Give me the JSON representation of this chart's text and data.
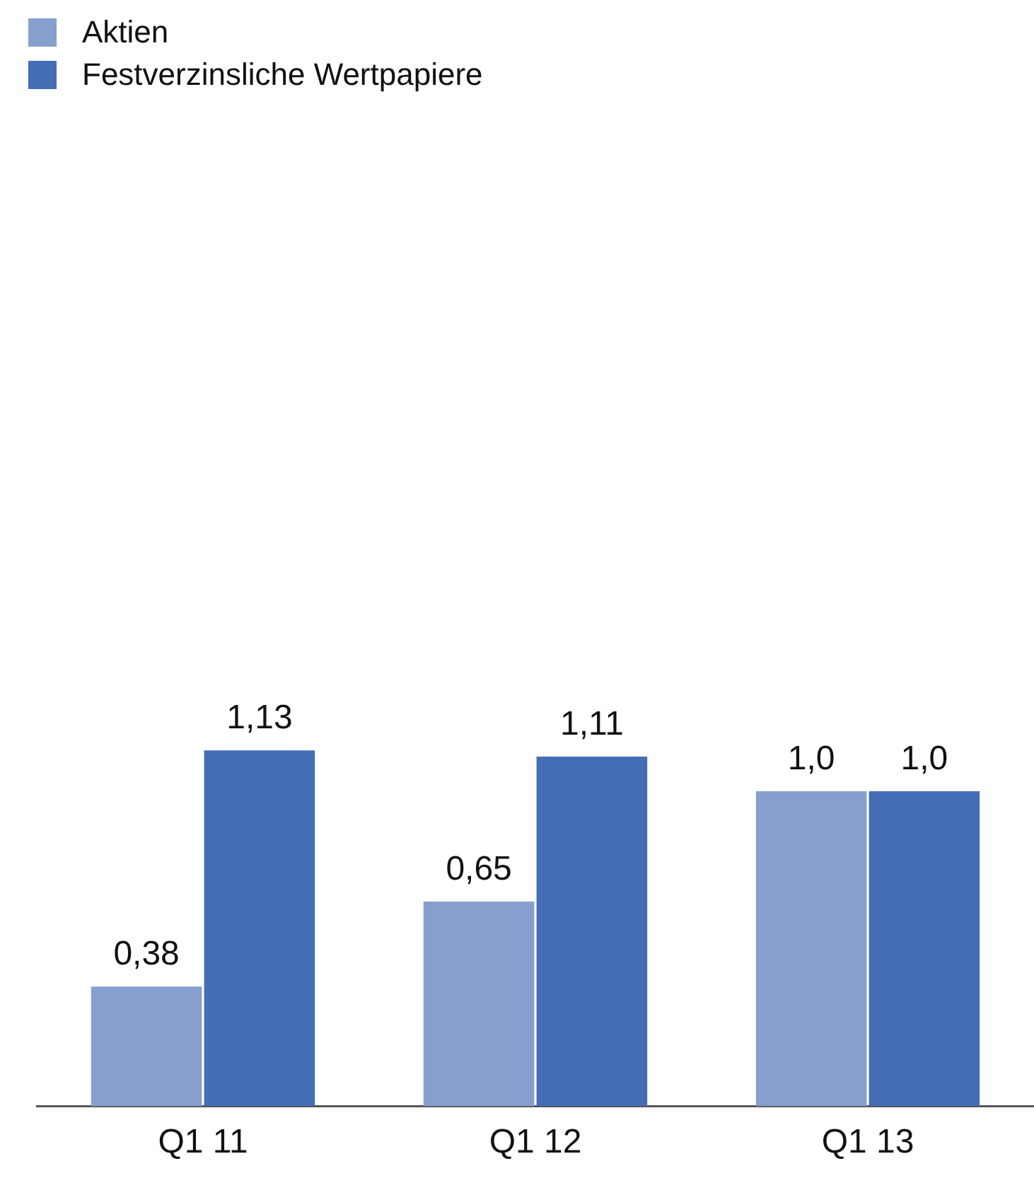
{
  "chart_data": {
    "type": "bar",
    "categories": [
      "Q1 11",
      "Q1 12",
      "Q1 13"
    ],
    "series": [
      {
        "name": "Aktien",
        "color": "#869fcf",
        "values": [
          0.38,
          0.65,
          1.0
        ],
        "value_labels": [
          "0,38",
          "0,65",
          "1,0"
        ]
      },
      {
        "name": "Festverzinsliche Wertpapiere",
        "color": "#456db5",
        "values": [
          1.13,
          1.11,
          1.0
        ],
        "value_labels": [
          "1,13",
          "1,11",
          "1,0"
        ]
      }
    ],
    "legend": "top left",
    "grid": false
  }
}
